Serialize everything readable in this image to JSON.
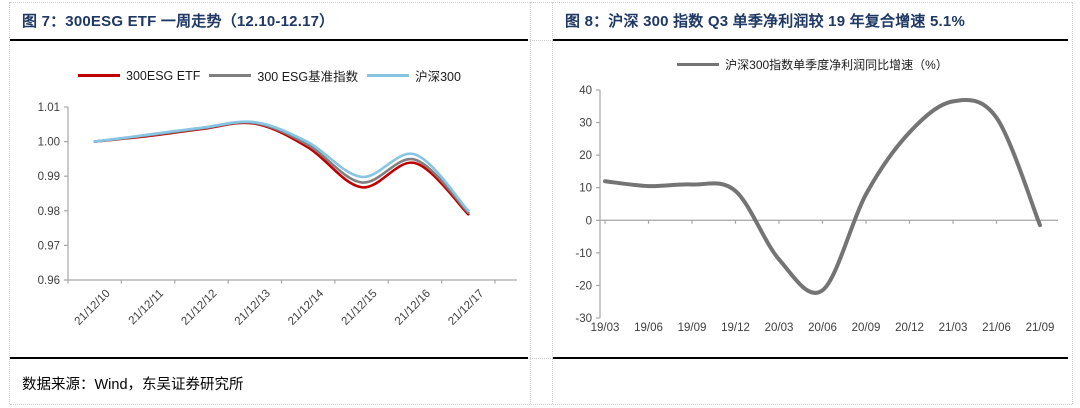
{
  "panels": {
    "left": {
      "title": "图 7：300ESG ETF 一周走势（12.10-12.17）"
    },
    "right": {
      "title": "图 8：沪深 300 指数 Q3 单季净利润较 19 年复合增速 5.1%"
    }
  },
  "footer": {
    "source": "数据来源：Wind，东吴证券研究所"
  },
  "colors": {
    "title_navy": "#1f3864",
    "axis_line": "#a6a6a6",
    "axis_text": "#3f3f3f",
    "esg_etf_red": "#c00000",
    "benchmark_gray": "#7f7f7f",
    "hs300_lightblue": "#87c5e3",
    "profit_line_gray": "#747474"
  },
  "chart_data": [
    {
      "type": "line",
      "title": "300ESG ETF 一周走势 (12.10-12.17)",
      "categories": [
        "21/12/10",
        "21/12/11",
        "21/12/12",
        "21/12/13",
        "21/12/14",
        "21/12/15",
        "21/12/16",
        "21/12/17"
      ],
      "series": [
        {
          "name": "300ESG ETF",
          "color": "#c00000",
          "values": [
            1.0,
            1.0016,
            1.0036,
            1.0052,
            0.9983,
            0.9868,
            0.9938,
            0.979
          ]
        },
        {
          "name": "300 ESG基准指数",
          "color": "#7f7f7f",
          "values": [
            1.0,
            1.0018,
            1.0038,
            1.0054,
            0.999,
            0.9882,
            0.9948,
            0.9795
          ]
        },
        {
          "name": "沪深300",
          "color": "#87c5e3",
          "values": [
            1.0,
            1.002,
            1.004,
            1.0056,
            0.9998,
            0.9898,
            0.9963,
            0.98
          ]
        }
      ],
      "ylim": [
        0.96,
        1.01
      ],
      "ytick_step": 0.01,
      "ytick_decimals": 2,
      "legend_position": "top",
      "grid": false,
      "x_labels_rotated": true
    },
    {
      "type": "line",
      "title": "沪深 300 指数 Q3 单季净利润较 19 年复合增速 5.1%",
      "categories": [
        "19/03",
        "19/06",
        "19/09",
        "19/12",
        "20/03",
        "20/06",
        "20/09",
        "20/12",
        "21/03",
        "21/06",
        "21/09"
      ],
      "series": [
        {
          "name": "沪深300指数单季度净利润同比增速（%）",
          "color": "#747474",
          "values": [
            12,
            10.5,
            11,
            9,
            -12,
            -21.5,
            8,
            27,
            36.5,
            31.5,
            -1.5
          ]
        }
      ],
      "ylim": [
        -30,
        40
      ],
      "ytick_step": 10,
      "ytick_decimals": 0,
      "legend_position": "top",
      "grid": false,
      "x_labels_rotated": false
    }
  ]
}
